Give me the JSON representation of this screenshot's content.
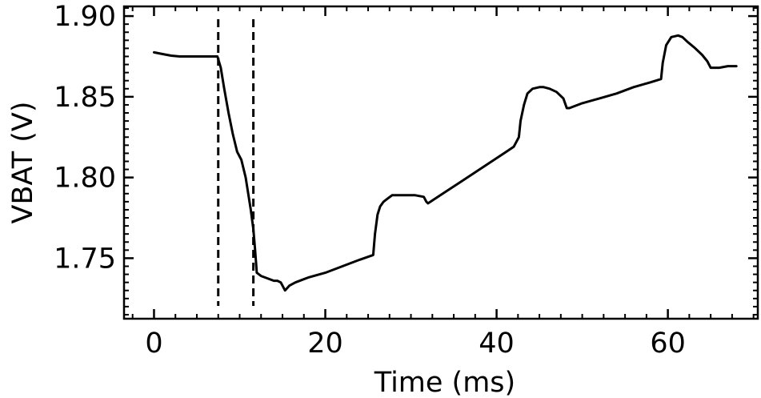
{
  "chart_data": {
    "type": "line",
    "title": "",
    "xlabel": "Time (ms)",
    "ylabel": "VBAT (V)",
    "xlim": [
      -3.5,
      70.5
    ],
    "ylim": [
      1.7125,
      1.906
    ],
    "xticks": [
      0,
      20,
      40,
      60
    ],
    "xtick_labels": [
      "0",
      "20",
      "40",
      "60"
    ],
    "yticks": [
      1.75,
      1.8,
      1.85,
      1.9
    ],
    "ytick_labels": [
      "1.75",
      "1.80",
      "1.85",
      "1.90"
    ],
    "vertical_markers": [
      7.5,
      11.6
    ],
    "grid": false,
    "series": [
      {
        "color": "#000000",
        "x": [
          0,
          1,
          2,
          3,
          4,
          5,
          6,
          7,
          7.4,
          7.8,
          8.2,
          8.7,
          9.2,
          9.7,
          10.2,
          10.7,
          11.0,
          11.3,
          11.6,
          11.8,
          12.0,
          12.5,
          13,
          13.5,
          14,
          14.4,
          14.8,
          15.3,
          15.8,
          16.5,
          18,
          20,
          22,
          24,
          25.6,
          25.8,
          26.1,
          26.4,
          26.8,
          27.3,
          27.8,
          28.5,
          29.5,
          30.5,
          31.5,
          31.8,
          32,
          34,
          36,
          38,
          40,
          42,
          42.6,
          42.8,
          43.2,
          43.6,
          44.2,
          45.0,
          45.5,
          46.2,
          47.0,
          47.8,
          48.2,
          48.5,
          50,
          52,
          54,
          56,
          58,
          59.2,
          59.4,
          59.8,
          60.4,
          61.2,
          61.7,
          62.3,
          63.2,
          64.0,
          64.6,
          65.0,
          65.3,
          66.0,
          67.0,
          68.0
        ],
        "y": [
          1.8775,
          1.8765,
          1.8755,
          1.875,
          1.875,
          1.875,
          1.875,
          1.875,
          1.875,
          1.868,
          1.855,
          1.84,
          1.827,
          1.816,
          1.811,
          1.8,
          1.79,
          1.78,
          1.768,
          1.755,
          1.741,
          1.739,
          1.738,
          1.737,
          1.736,
          1.736,
          1.735,
          1.73,
          1.733,
          1.735,
          1.738,
          1.741,
          1.745,
          1.749,
          1.752,
          1.765,
          1.777,
          1.782,
          1.785,
          1.787,
          1.789,
          1.789,
          1.789,
          1.789,
          1.788,
          1.785,
          1.784,
          1.791,
          1.798,
          1.805,
          1.812,
          1.819,
          1.825,
          1.835,
          1.845,
          1.852,
          1.855,
          1.856,
          1.856,
          1.855,
          1.853,
          1.849,
          1.843,
          1.843,
          1.846,
          1.849,
          1.852,
          1.856,
          1.859,
          1.861,
          1.871,
          1.882,
          1.887,
          1.888,
          1.887,
          1.884,
          1.88,
          1.876,
          1.872,
          1.868,
          1.868,
          1.868,
          1.869,
          1.869
        ]
      }
    ]
  }
}
